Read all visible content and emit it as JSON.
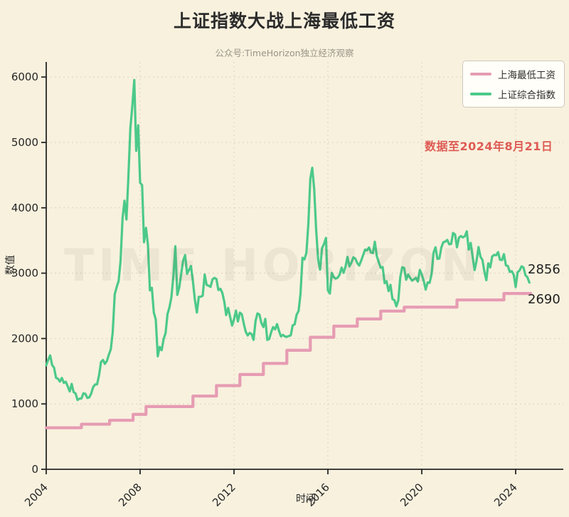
{
  "header": {
    "title": "上证指数大战上海最低工资",
    "subtitle": "公众号:TimeHorizon独立经济观察"
  },
  "annotation": {
    "text": "数据至2024年8月21日",
    "color": "#de5b54"
  },
  "watermark": {
    "text": "TIME HORIZON"
  },
  "legend": {
    "position": "top-right",
    "items": [
      {
        "label": "上海最低工资",
        "color": "#e69cb3"
      },
      {
        "label": "上证综合指数",
        "color": "#4cc98a"
      }
    ]
  },
  "colors": {
    "background": "#f8f1de",
    "wage_line": "#e69cb3",
    "index_line": "#4cc98a",
    "annotation_red": "#de5b54",
    "axis": "#262626",
    "grid": "#d8d0b8"
  },
  "chart_data": {
    "type": "line",
    "title": "上证指数大战上海最低工资",
    "xlabel": "时间",
    "ylabel": "数值",
    "xlim": [
      2004,
      2026.03
    ],
    "ylim": [
      0,
      6231
    ],
    "x_ticks": [
      2004,
      2008,
      2012,
      2016,
      2020,
      2024
    ],
    "y_ticks": [
      0,
      1000,
      2000,
      3000,
      4000,
      5000,
      6000
    ],
    "grid": "dashed",
    "legend_position": "top-right",
    "series": [
      {
        "name": "上海最低工资",
        "type": "step",
        "color": "#e69cb3",
        "stroke_width": 4.2,
        "x_end": 2024.64,
        "steps": [
          [
            2004.0,
            635
          ],
          [
            2005.5,
            690
          ],
          [
            2006.7,
            750
          ],
          [
            2007.7,
            840
          ],
          [
            2008.25,
            960
          ],
          [
            2010.25,
            1120
          ],
          [
            2011.25,
            1280
          ],
          [
            2012.25,
            1450
          ],
          [
            2013.25,
            1620
          ],
          [
            2014.25,
            1820
          ],
          [
            2015.25,
            2020
          ],
          [
            2016.25,
            2190
          ],
          [
            2017.25,
            2300
          ],
          [
            2018.25,
            2420
          ],
          [
            2019.25,
            2480
          ],
          [
            2021.5,
            2590
          ],
          [
            2023.5,
            2690
          ]
        ]
      },
      {
        "name": "上证综合指数",
        "type": "line",
        "color": "#4cc98a",
        "stroke_width": 3.2,
        "x_start": 2004.0,
        "x_step": 0.0833333,
        "values": [
          1590,
          1676,
          1742,
          1595,
          1555,
          1399,
          1386,
          1342,
          1397,
          1320,
          1340,
          1266,
          1191,
          1306,
          1181,
          1159,
          1060,
          1081,
          1083,
          1162,
          1155,
          1092,
          1099,
          1161,
          1258,
          1299,
          1298,
          1440,
          1641,
          1672,
          1612,
          1658,
          1752,
          1837,
          2099,
          2675,
          2786,
          2881,
          3184,
          3841,
          4109,
          3821,
          4471,
          5218,
          5552,
          5955,
          4871,
          5262,
          4383,
          4348,
          3473,
          3693,
          3433,
          2736,
          2776,
          2397,
          2294,
          1729,
          1871,
          1821,
          1991,
          2083,
          2373,
          2478,
          2633,
          2959,
          3412,
          2668,
          2779,
          2995,
          3195,
          3277,
          2989,
          3051,
          3109,
          2870,
          2592,
          2398,
          2638,
          2639,
          2656,
          2979,
          2820,
          2808,
          2790,
          2905,
          2928,
          2911,
          2743,
          2762,
          2702,
          2567,
          2359,
          2468,
          2333,
          2199,
          2293,
          2428,
          2262,
          2396,
          2372,
          2225,
          2103,
          2047,
          2086,
          2068,
          1980,
          2269,
          2385,
          2366,
          2237,
          2177,
          2301,
          1979,
          1994,
          2098,
          2175,
          2141,
          2221,
          2116,
          2033,
          2056,
          2033,
          2026,
          2039,
          2048,
          2202,
          2217,
          2364,
          2420,
          2683,
          3235,
          3210,
          3310,
          3748,
          4442,
          4612,
          4277,
          3664,
          3206,
          3053,
          3383,
          3445,
          3539,
          2738,
          2688,
          3004,
          2938,
          2917,
          2930,
          2979,
          3085,
          3005,
          3100,
          3250,
          3104,
          3159,
          3242,
          3223,
          3155,
          3117,
          3192,
          3273,
          3361,
          3349,
          3393,
          3317,
          3307,
          3481,
          3259,
          3169,
          3082,
          3095,
          2847,
          2876,
          2725,
          2821,
          2603,
          2588,
          2494,
          2585,
          2941,
          3091,
          3078,
          2899,
          2979,
          2933,
          2886,
          2905,
          2929,
          2872,
          3050,
          2977,
          2880,
          2750,
          2860,
          2852,
          2985,
          3310,
          3396,
          3218,
          3225,
          3392,
          3473,
          3483,
          3509,
          3442,
          3447,
          3615,
          3591,
          3397,
          3544,
          3568,
          3547,
          3564,
          3640,
          3361,
          3462,
          3252,
          3047,
          3186,
          3399,
          3253,
          3202,
          3024,
          2893,
          3151,
          3089,
          3256,
          3280,
          3273,
          3323,
          3205,
          3202,
          3291,
          3120,
          3110,
          3019,
          3030,
          2975,
          2789,
          3015,
          3041,
          3105,
          3087,
          2967,
          2938,
          2856
        ]
      }
    ],
    "end_labels": {
      "index": "2856",
      "wage": "2690"
    }
  }
}
